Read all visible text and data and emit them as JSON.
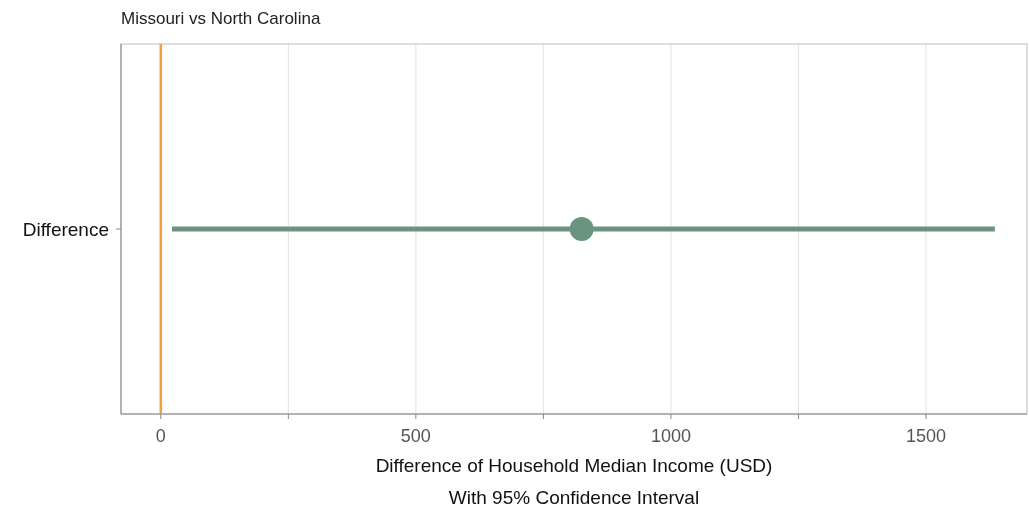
{
  "chart_data": {
    "type": "scatter",
    "orientation": "horizontal",
    "title": "Missouri vs North Carolina",
    "xlabel": "Difference of Household Median Income (USD)",
    "annotations": [
      "With 95% Confidence Interval"
    ],
    "categories": [
      "Difference"
    ],
    "series": [
      {
        "color": "#6b9480",
        "values": [
          825
        ],
        "errors": [
          [
            22,
            1635
          ]
        ]
      }
    ],
    "xlim": [
      -78,
      1698
    ],
    "xticks": [
      0,
      {
        "value": 250,
        "label": null
      },
      500,
      {
        "value": 750,
        "label": null
      },
      1000,
      {
        "value": 1250,
        "label": null
      },
      1500
    ],
    "grid": "x",
    "marker": "circle",
    "ref_lines": [
      {
        "axis": "x",
        "value": 0,
        "color": "#f0a040"
      }
    ]
  }
}
